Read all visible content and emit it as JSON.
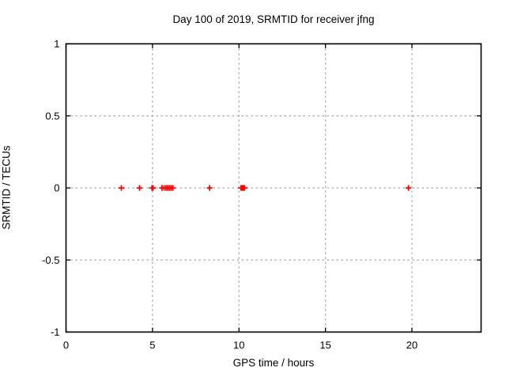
{
  "title": "Day 100 of 2019, SRMTID for receiver jfng",
  "colors": {
    "background": "#ffffff",
    "border": "#000000",
    "grid": "#a6a6a6",
    "marker": "#ff0000",
    "text": "#000000"
  },
  "chart_data": {
    "type": "scatter",
    "title": "Day 100 of 2019, SRMTID for receiver jfng",
    "xlabel": "GPS time / hours",
    "ylabel": "SRMTID / TECUs",
    "xlim": [
      0,
      24
    ],
    "ylim": [
      -1,
      1
    ],
    "xticks": [
      0,
      5,
      10,
      15,
      20
    ],
    "xtick_labels": [
      "0",
      "5",
      "10",
      "15",
      "20"
    ],
    "yticks": [
      -1,
      -0.5,
      0,
      0.5,
      1
    ],
    "ytick_labels": [
      "-1",
      "-0.5",
      "0",
      "0.5",
      "1"
    ],
    "grid": true,
    "legend_position": "none",
    "marker": {
      "shape": "plus",
      "color": "#ff0000",
      "size": 7.2,
      "stroke_width": 1.8
    },
    "series": [
      {
        "name": "SRMTID",
        "x": [
          3.2,
          4.25,
          4.97,
          5.03,
          5.55,
          5.67,
          5.78,
          5.88,
          5.98,
          6.08,
          6.18,
          8.3,
          10.12,
          10.17,
          10.22,
          10.27,
          10.32,
          19.8
        ],
        "y": [
          0,
          0,
          0,
          0,
          0,
          0,
          0,
          0,
          0,
          0,
          0,
          0,
          0,
          0,
          0,
          0,
          0,
          0
        ]
      }
    ]
  }
}
